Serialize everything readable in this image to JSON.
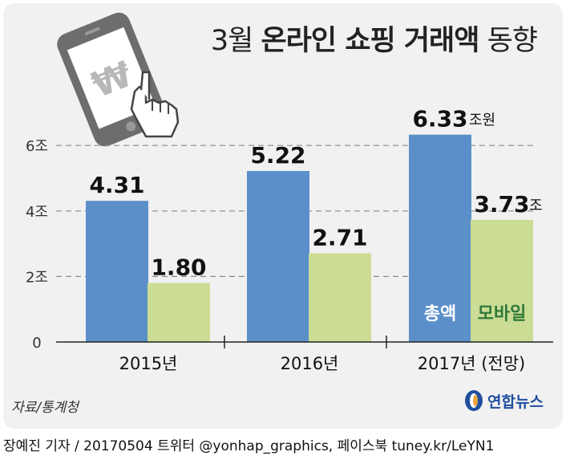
{
  "title": {
    "prefix": "3월",
    "main": "온라인 쇼핑 거래액",
    "suffix": "동향"
  },
  "chart_data": {
    "type": "bar",
    "title": "3월 온라인 쇼핑 거래액 동향",
    "categories": [
      "2015년",
      "2016년",
      "2017년 (전망)"
    ],
    "series": [
      {
        "name": "총액",
        "values": [
          4.31,
          5.22,
          6.33
        ],
        "labels": [
          "4.31",
          "5.22",
          "6.33"
        ],
        "color": "#5b8fc9"
      },
      {
        "name": "모바일",
        "values": [
          1.8,
          2.71,
          3.73
        ],
        "labels": [
          "1.80",
          "2.71",
          "3.73"
        ],
        "color": "#cbdc94"
      }
    ],
    "unit_annotations": {
      "total_last": "조원",
      "mobile_last": "조"
    },
    "yticks": [
      {
        "value": 0,
        "label": "0"
      },
      {
        "value": 2,
        "label": "2조"
      },
      {
        "value": 4,
        "label": "4조"
      },
      {
        "value": 6,
        "label": "6조"
      }
    ],
    "ylim": [
      0,
      6.5
    ],
    "grid": "dashed horizontal",
    "legend_placement": "inside-bottom-right",
    "legend_text_colors": {
      "총액": "#ffffff",
      "모바일": "#2f7a3a"
    }
  },
  "source": "자료/통계청",
  "logo": {
    "text": "연합뉴스",
    "icon": "yonhap-logo-icon",
    "color": "#1f4e9e"
  },
  "illustration": {
    "icon": "smartphone-won-hand-icon"
  },
  "footer": "장예진 기자 / 20170504 트위터 @yonhap_graphics, 페이스북 tuney.kr/LeYN1"
}
